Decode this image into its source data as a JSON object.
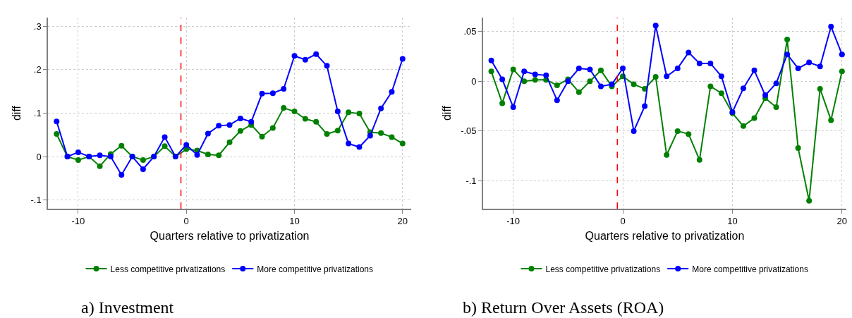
{
  "chart_data": [
    {
      "type": "line",
      "xlabel": "Quarters relative to privatization",
      "ylabel": "diff",
      "marker": "circle",
      "line_style": "solid",
      "grid": true,
      "legend": "bottom",
      "x": [
        -12,
        -11,
        -10,
        -9,
        -8,
        -7,
        -6,
        -5,
        -4,
        -3,
        -2,
        -1,
        0,
        1,
        2,
        3,
        4,
        5,
        6,
        7,
        8,
        9,
        10,
        11,
        12,
        13,
        14,
        15,
        16,
        17,
        18,
        19,
        20
      ],
      "xlim": [
        -12.8,
        20.8
      ],
      "xticks": [
        -10,
        0,
        10,
        20
      ],
      "ylim": [
        -0.12,
        0.32
      ],
      "yticks": [
        {
          "value": -0.1,
          "label": "-.1"
        },
        0,
        {
          "value": 0.1,
          "label": ".1"
        },
        {
          "value": 0.2,
          "label": ".2"
        },
        {
          "value": 0.3,
          "label": ".3"
        }
      ],
      "ref_lines": [
        {
          "axis": "x",
          "value": -0.5,
          "color": "#ff0000",
          "line_style": "dashed"
        }
      ],
      "annotations": [
        "a) Investment"
      ],
      "series": [
        {
          "name": "Less competitive privatizations",
          "color": "#008000",
          "values": [
            0.052,
            0,
            -0.008,
            0,
            -0.022,
            0.006,
            0.025,
            0,
            -0.008,
            0,
            0.024,
            0,
            0.017,
            0.014,
            0.005,
            0.003,
            0.033,
            0.059,
            0.073,
            0.046,
            0.066,
            0.112,
            0.104,
            0.087,
            0.08,
            0.052,
            0.06,
            0.102,
            0.099,
            0.056,
            0.054,
            0.045,
            0.03
          ]
        },
        {
          "name": "More competitive privatizations",
          "color": "#0000ff",
          "values": [
            0.081,
            0,
            0.01,
            0,
            0.003,
            0,
            -0.042,
            0,
            -0.029,
            0,
            0.045,
            0,
            0.027,
            0.004,
            0.053,
            0.071,
            0.073,
            0.088,
            0.08,
            0.145,
            0.146,
            0.156,
            0.232,
            0.223,
            0.236,
            0.209,
            0.104,
            0.03,
            0.022,
            0.048,
            0.111,
            0.149,
            0.225
          ]
        }
      ]
    },
    {
      "type": "line",
      "xlabel": "Quarters relative to privatization",
      "ylabel": "diff",
      "marker": "circle",
      "line_style": "solid",
      "grid": true,
      "legend": "bottom",
      "x": [
        -12,
        -11,
        -10,
        -9,
        -8,
        -7,
        -6,
        -5,
        -4,
        -3,
        -2,
        -1,
        0,
        1,
        2,
        3,
        4,
        5,
        6,
        7,
        8,
        9,
        10,
        11,
        12,
        13,
        14,
        15,
        16,
        17,
        18,
        19,
        20
      ],
      "xlim": [
        -12.75,
        20.4
      ],
      "xticks": [
        -10,
        0,
        10,
        20
      ],
      "ylim": [
        -0.128,
        0.064
      ],
      "yticks": [
        {
          "value": -0.1,
          "label": "-.1"
        },
        {
          "value": -0.05,
          "label": "-.05"
        },
        0,
        {
          "value": 0.05,
          "label": ".05"
        }
      ],
      "ref_lines": [
        {
          "axis": "x",
          "value": -0.5,
          "color": "#ff0000",
          "line_style": "dashed"
        }
      ],
      "annotations": [
        "b) Return Over Assets (ROA)"
      ],
      "series": [
        {
          "name": "Less competitive privatizations",
          "color": "#008000",
          "values": [
            0.01,
            -0.022,
            0.012,
            0,
            0.0015,
            0.0015,
            -0.004,
            0.002,
            -0.011,
            0,
            0.011,
            -0.005,
            0.005,
            -0.003,
            -0.0075,
            0.0045,
            -0.074,
            -0.05,
            -0.053,
            -0.079,
            -0.005,
            -0.012,
            -0.032,
            -0.045,
            -0.037,
            -0.017,
            -0.026,
            0.042,
            -0.067,
            -0.12,
            -0.0075,
            -0.039,
            0.01
          ]
        },
        {
          "name": "More competitive privatizations",
          "color": "#0000ff",
          "values": [
            0.021,
            0.002,
            -0.026,
            0.01,
            0.007,
            0.006,
            -0.019,
            0,
            0.013,
            0.012,
            -0.005,
            -0.003,
            0.013,
            -0.05,
            -0.025,
            0.056,
            0.005,
            0.013,
            0.029,
            0.018,
            0.018,
            0.005,
            -0.031,
            -0.007,
            0.011,
            -0.014,
            -0.002,
            0.027,
            0.013,
            0.019,
            0.015,
            0.055,
            0.027
          ]
        }
      ]
    }
  ]
}
